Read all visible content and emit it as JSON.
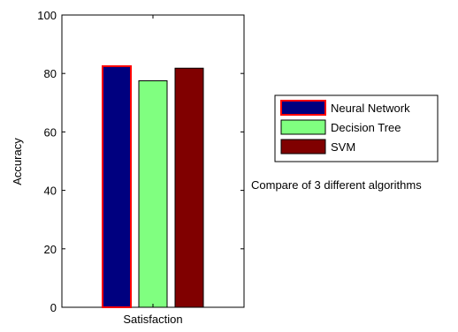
{
  "chart_data": {
    "type": "bar",
    "categories": [
      "Satisfaction"
    ],
    "series": [
      {
        "name": "Neural Network",
        "values": [
          82.5
        ],
        "color": "#00007f",
        "edge": "#ff0000"
      },
      {
        "name": "Decision Tree",
        "values": [
          77.5
        ],
        "color": "#80ff80",
        "edge": "#000000"
      },
      {
        "name": "SVM",
        "values": [
          81.8
        ],
        "color": "#800000",
        "edge": "#000000"
      }
    ],
    "ylabel": "Accuracy",
    "xlabel": "",
    "ylim": [
      0,
      100
    ],
    "yticks": [
      0,
      20,
      40,
      60,
      80,
      100
    ],
    "grid": false,
    "legend": "right"
  },
  "annotation": "Compare of 3 different algorithms"
}
